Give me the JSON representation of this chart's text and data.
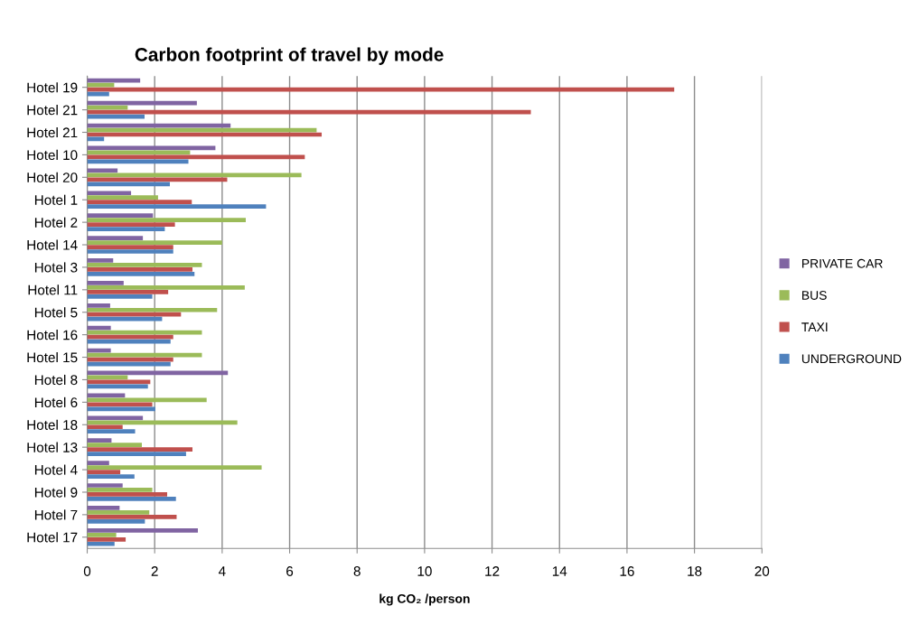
{
  "chart_data": {
    "type": "bar",
    "orientation": "horizontal",
    "title": "Carbon footprint of travel by mode",
    "xlabel": "kg CO₂ /person",
    "categories": [
      "Hotel 19",
      "Hotel 21",
      "Hotel 21",
      "Hotel 10",
      "Hotel 20",
      "Hotel 1",
      "Hotel 2",
      "Hotel 14",
      "Hotel 3",
      "Hotel 11",
      "Hotel 5",
      "Hotel 16",
      "Hotel 15",
      "Hotel 8",
      "Hotel 6",
      "Hotel 18",
      "Hotel 13",
      "Hotel 4",
      "Hotel 9",
      "Hotel 7",
      "Hotel 17"
    ],
    "series": [
      {
        "name": "PRIVATE CAR",
        "color": "#8064a2",
        "values": [
          1.57,
          3.25,
          4.25,
          3.8,
          0.9,
          1.3,
          1.95,
          1.65,
          0.77,
          1.08,
          0.68,
          0.7,
          0.7,
          4.17,
          1.12,
          1.65,
          0.72,
          0.65,
          1.05,
          0.96,
          3.28
        ]
      },
      {
        "name": "BUS",
        "color": "#9bbb59",
        "values": [
          0.8,
          1.2,
          6.8,
          3.05,
          6.35,
          2.1,
          4.7,
          4.0,
          3.4,
          4.67,
          3.85,
          3.4,
          3.4,
          1.2,
          3.54,
          4.45,
          1.62,
          5.17,
          1.93,
          1.84,
          0.86
        ]
      },
      {
        "name": "TAXI",
        "color": "#c0504d",
        "values": [
          17.4,
          13.15,
          6.95,
          6.45,
          4.15,
          3.1,
          2.6,
          2.55,
          3.12,
          2.4,
          2.78,
          2.55,
          2.55,
          1.87,
          1.93,
          1.05,
          3.12,
          0.98,
          2.37,
          2.65,
          1.14
        ]
      },
      {
        "name": "UNDERGROUND",
        "color": "#4f81bd",
        "values": [
          0.65,
          1.7,
          0.5,
          3.0,
          2.45,
          5.3,
          2.3,
          2.55,
          3.18,
          1.93,
          2.22,
          2.47,
          2.47,
          1.8,
          2.02,
          1.42,
          2.93,
          1.4,
          2.63,
          1.71,
          0.81
        ]
      }
    ],
    "xlim": [
      0,
      20
    ],
    "xticks": [
      0,
      2,
      4,
      6,
      8,
      10,
      12,
      14,
      16,
      18,
      20
    ],
    "grid": "x",
    "legend": "right"
  }
}
